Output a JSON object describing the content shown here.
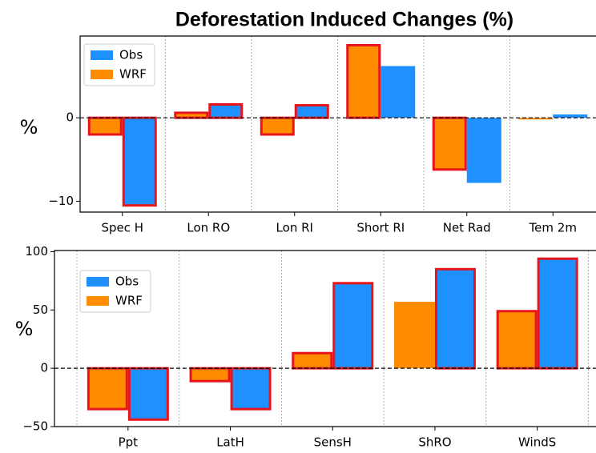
{
  "chart_data": [
    {
      "type": "bar",
      "title": "Deforestation Induced Changes (%)",
      "ylabel": "%",
      "categories": [
        "Spec H",
        "Lon RO",
        "Lon RI",
        "Short RI",
        "Net Rad",
        "Tem 2m"
      ],
      "series": [
        {
          "name": "WRF",
          "color": "#ff8c00",
          "values": [
            -2.0,
            0.6,
            -2.0,
            8.7,
            -6.2,
            -0.2
          ],
          "highlight": [
            true,
            true,
            true,
            true,
            true,
            false
          ]
        },
        {
          "name": "Obs",
          "color": "#1e90ff",
          "values": [
            -10.5,
            1.6,
            1.5,
            6.2,
            -7.8,
            0.4
          ],
          "highlight": [
            true,
            true,
            true,
            false,
            false,
            false
          ]
        }
      ],
      "ylim": [
        -11.3,
        9.8
      ],
      "yticks": [
        {
          "value": -10,
          "label": "−10"
        },
        0
      ],
      "legend": "upper left",
      "highlight_color": "#e8141c"
    },
    {
      "type": "bar",
      "ylabel": "%",
      "categories": [
        "Ppt",
        "LatH",
        "SensH",
        "ShRO",
        "WindS"
      ],
      "series": [
        {
          "name": "WRF",
          "color": "#ff8c00",
          "values": [
            -35,
            -11,
            13,
            57,
            49
          ],
          "highlight": [
            true,
            true,
            true,
            false,
            true
          ]
        },
        {
          "name": "Obs",
          "color": "#1e90ff",
          "values": [
            -44,
            -35,
            73,
            85,
            94
          ],
          "highlight": [
            true,
            true,
            true,
            true,
            true
          ]
        }
      ],
      "ylim": [
        -50,
        101
      ],
      "yticks": [
        {
          "value": -50,
          "label": "−50"
        },
        0,
        50,
        100
      ],
      "legend": "upper left",
      "highlight_color": "#e8141c"
    }
  ]
}
